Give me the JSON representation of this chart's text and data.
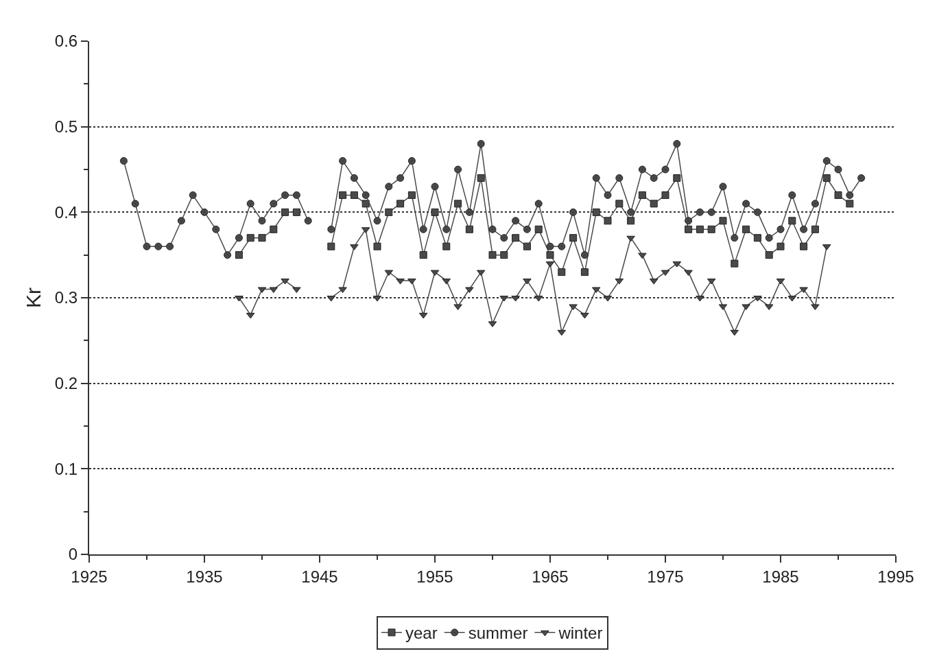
{
  "chart_data": {
    "type": "line",
    "ylabel": "Kr",
    "x": [
      1928,
      1929,
      1930,
      1931,
      1932,
      1933,
      1934,
      1935,
      1936,
      1937,
      1938,
      1939,
      1940,
      1941,
      1942,
      1943,
      1944,
      1945,
      1946,
      1947,
      1948,
      1949,
      1950,
      1951,
      1952,
      1953,
      1954,
      1955,
      1956,
      1957,
      1958,
      1959,
      1960,
      1961,
      1962,
      1963,
      1964,
      1965,
      1966,
      1967,
      1968,
      1969,
      1970,
      1971,
      1972,
      1973,
      1974,
      1975,
      1976,
      1977,
      1978,
      1979,
      1980,
      1981,
      1982,
      1983,
      1984,
      1985,
      1986,
      1987,
      1988,
      1989,
      1990,
      1991,
      1992
    ],
    "series": [
      {
        "name": "year",
        "color": "#4a4a4a",
        "marker": "square",
        "values": [
          null,
          null,
          null,
          null,
          null,
          null,
          null,
          null,
          null,
          null,
          0.35,
          0.37,
          0.37,
          0.38,
          0.4,
          0.4,
          null,
          null,
          0.36,
          0.42,
          0.42,
          0.41,
          0.36,
          0.4,
          0.41,
          0.42,
          0.35,
          0.4,
          0.36,
          0.41,
          0.38,
          0.44,
          0.35,
          0.35,
          0.37,
          0.36,
          0.38,
          0.35,
          0.33,
          0.37,
          0.33,
          0.4,
          0.39,
          0.41,
          0.39,
          0.42,
          0.41,
          0.42,
          0.44,
          0.38,
          0.38,
          0.38,
          0.39,
          0.34,
          0.38,
          0.37,
          0.35,
          0.36,
          0.39,
          0.36,
          0.38,
          0.44,
          0.42,
          0.41,
          null
        ]
      },
      {
        "name": "summer",
        "color": "#4a4a4a",
        "marker": "circle",
        "values": [
          0.46,
          0.41,
          0.36,
          0.36,
          0.36,
          0.39,
          0.42,
          0.4,
          0.38,
          0.35,
          0.37,
          0.41,
          0.39,
          0.41,
          0.42,
          0.42,
          0.39,
          null,
          0.38,
          0.46,
          0.44,
          0.42,
          0.39,
          0.43,
          0.44,
          0.46,
          0.38,
          0.43,
          0.38,
          0.45,
          0.4,
          0.48,
          0.38,
          0.37,
          0.39,
          0.38,
          0.41,
          0.36,
          0.36,
          0.4,
          0.35,
          0.44,
          0.42,
          0.44,
          0.4,
          0.45,
          0.44,
          0.45,
          0.48,
          0.39,
          0.4,
          0.4,
          0.43,
          0.37,
          0.41,
          0.4,
          0.37,
          0.38,
          0.42,
          0.38,
          0.41,
          0.46,
          0.45,
          0.42,
          0.44
        ]
      },
      {
        "name": "winter",
        "color": "#4a4a4a",
        "marker": "triangle",
        "values": [
          null,
          null,
          null,
          null,
          null,
          null,
          null,
          null,
          null,
          null,
          0.3,
          0.28,
          0.31,
          0.31,
          0.32,
          0.31,
          null,
          null,
          0.3,
          0.31,
          0.36,
          0.38,
          0.3,
          0.33,
          0.32,
          0.32,
          0.28,
          0.33,
          0.32,
          0.29,
          0.31,
          0.33,
          0.27,
          0.3,
          0.3,
          0.32,
          0.3,
          0.34,
          0.26,
          0.29,
          0.28,
          0.31,
          0.3,
          0.32,
          0.37,
          0.35,
          0.32,
          0.33,
          0.34,
          0.33,
          0.3,
          0.32,
          0.29,
          0.26,
          0.29,
          0.3,
          0.29,
          0.32,
          0.3,
          0.31,
          0.29,
          0.36,
          null,
          null,
          null
        ]
      }
    ],
    "xlim": [
      1925,
      1995
    ],
    "xticks": [
      1925,
      {
        "value": 1930,
        "label": null
      },
      1935,
      {
        "value": 1940,
        "label": null
      },
      1945,
      {
        "value": 1950,
        "label": null
      },
      1955,
      {
        "value": 1960,
        "label": null
      },
      1965,
      {
        "value": 1970,
        "label": null
      },
      1975,
      {
        "value": 1980,
        "label": null
      },
      1985,
      {
        "value": 1990,
        "label": null
      },
      1995
    ],
    "ylim": [
      0,
      0.6
    ],
    "yticks": [
      0,
      {
        "value": 0.05,
        "label": null
      },
      0.1,
      {
        "value": 0.15,
        "label": null
      },
      0.2,
      {
        "value": 0.25,
        "label": null
      },
      0.3,
      {
        "value": 0.35,
        "label": null
      },
      0.4,
      {
        "value": 0.45,
        "label": null
      },
      0.5,
      {
        "value": 0.55,
        "label": null
      },
      0.6
    ],
    "grid": "y",
    "legend": "bottom",
    "line_style": "solid"
  }
}
